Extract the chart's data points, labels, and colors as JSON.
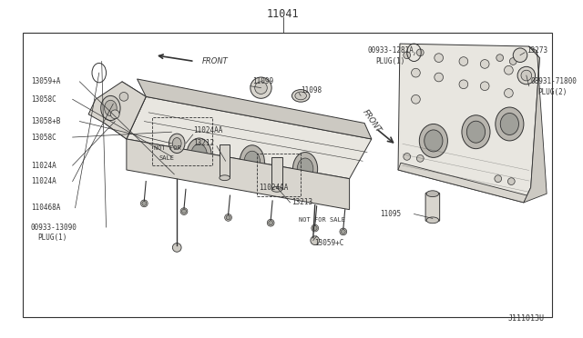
{
  "bg_color": "#ffffff",
  "border_color": "#333333",
  "line_color": "#333333",
  "title_number": "11041",
  "footer_code": "J111013U",
  "text_fontsize": 5.5,
  "title_fontsize": 8.5,
  "border": [
    0.04,
    0.05,
    0.975,
    0.915
  ],
  "head_fill": "#e8e6e0",
  "head_fill2": "#d8d5ce",
  "head_fill3": "#ccc9c2",
  "head_fill4": "#bbb8b2",
  "hole_fill": "#b8b5ae",
  "hole_fill2": "#a0a09a"
}
